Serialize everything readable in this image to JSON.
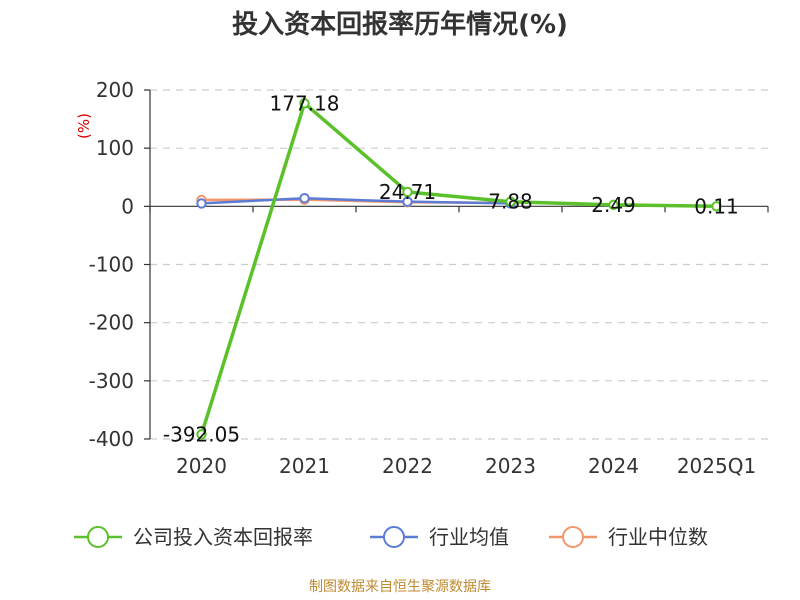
{
  "chart_data": {
    "type": "line",
    "title": "投入资本回报率历年情况(%)",
    "ylabel": "(%)",
    "xlabel": "",
    "categories": [
      "2020",
      "2021",
      "2022",
      "2023",
      "2024",
      "2025Q1"
    ],
    "ylim": [
      -400,
      200
    ],
    "yticks": [
      200,
      100,
      0,
      -100,
      -200,
      -300,
      -400
    ],
    "grid": true,
    "legend_position": "bottom",
    "series": [
      {
        "name": "公司投入资本回报率",
        "color": "#5ac12a",
        "values": [
          -392.05,
          177.18,
          24.71,
          7.88,
          2.49,
          0.11
        ],
        "labels": [
          "-392.05",
          "177.18",
          "24.71",
          "7.88",
          "2.49",
          "0.11"
        ]
      },
      {
        "name": "行业均值",
        "color": "#5b7bd5",
        "values": [
          5.0,
          14.0,
          8.0,
          5.0,
          null,
          null
        ]
      },
      {
        "name": "行业中位数",
        "color": "#f4966b",
        "values": [
          11.0,
          11.5,
          7.0,
          6.0,
          null,
          null
        ]
      }
    ],
    "source": "制图数据来自恒生聚源数据库"
  }
}
